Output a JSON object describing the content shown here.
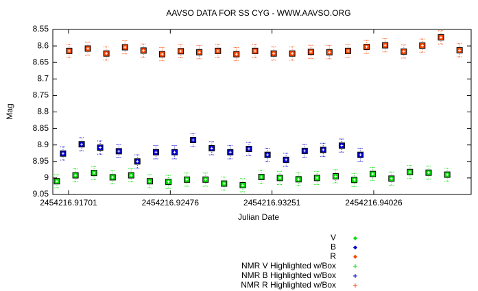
{
  "chart_data": {
    "type": "scatter",
    "title": "AAVSO DATA FOR SS CYG - WWW.AAVSO.ORG",
    "x_label": "Julian Date",
    "y_label": "Mag",
    "xlim": [
      2454216.91581,
      2454216.94768
    ],
    "ylim": [
      9.05,
      8.55
    ],
    "xticks": [
      2454216.91701,
      2454216.92476,
      2454216.93251,
      2454216.94026
    ],
    "yticks": [
      8.55,
      8.6,
      8.65,
      8.7,
      8.75,
      8.8,
      8.85,
      8.9,
      8.95,
      9,
      9.05
    ],
    "legend": "bottom-right",
    "series": [
      {
        "name": "V",
        "box_name": "NMR V Highlighted w/Box",
        "color": "#00dd00",
        "error": 0.02,
        "x": [
          2454216.91612,
          2454216.91754,
          2454216.91895,
          2454216.92037,
          2454216.92178,
          2454216.9232,
          2454216.92462,
          2454216.92603,
          2454216.92745,
          2454216.92886,
          2454216.93028,
          2454216.9317,
          2454216.93311,
          2454216.93453,
          2454216.93594,
          2454216.93736,
          2454216.93878,
          2454216.94019,
          2454216.94161,
          2454216.94302,
          2454216.94444,
          2454216.94586
        ],
        "values": [
          9.01,
          8.992,
          8.985,
          8.998,
          8.992,
          9.01,
          9.012,
          9.005,
          9.005,
          9.017,
          9.022,
          8.997,
          9.0,
          9.004,
          9.0,
          8.995,
          9.006,
          8.988,
          9.002,
          8.982,
          8.984,
          8.99
        ]
      },
      {
        "name": "B",
        "box_name": "NMR B Highlighted w/Box",
        "color": "#0000cc",
        "error": 0.02,
        "x": [
          2454216.91659,
          2454216.91801,
          2454216.91942,
          2454216.92084,
          2454216.92225,
          2454216.92367,
          2454216.92509,
          2454216.9265,
          2454216.92792,
          2454216.92933,
          2454216.93075,
          2454216.93217,
          2454216.93358,
          2454216.935,
          2454216.93641,
          2454216.93783,
          2454216.93925
        ],
        "values": [
          8.926,
          8.898,
          8.908,
          8.919,
          8.95,
          8.922,
          8.922,
          8.885,
          8.91,
          8.922,
          8.912,
          8.93,
          8.945,
          8.918,
          8.915,
          8.902,
          8.93
        ]
      },
      {
        "name": "R",
        "box_name": "NMR R Highlighted w/Box",
        "color": "#ff4500",
        "error": 0.02,
        "x": [
          2454216.91706,
          2454216.91848,
          2454216.91989,
          2454216.92131,
          2454216.92272,
          2454216.92414,
          2454216.92556,
          2454216.92697,
          2454216.92839,
          2454216.9298,
          2454216.93122,
          2454216.93264,
          2454216.93405,
          2454216.93547,
          2454216.93688,
          2454216.9383,
          2454216.93972,
          2454216.94113,
          2454216.94255,
          2454216.94396,
          2454216.94538,
          2454216.9468
        ],
        "values": [
          8.615,
          8.608,
          8.623,
          8.604,
          8.614,
          8.625,
          8.616,
          8.619,
          8.615,
          8.625,
          8.615,
          8.623,
          8.623,
          8.618,
          8.619,
          8.615,
          8.603,
          8.598,
          8.617,
          8.599,
          8.574,
          8.613
        ]
      }
    ]
  }
}
